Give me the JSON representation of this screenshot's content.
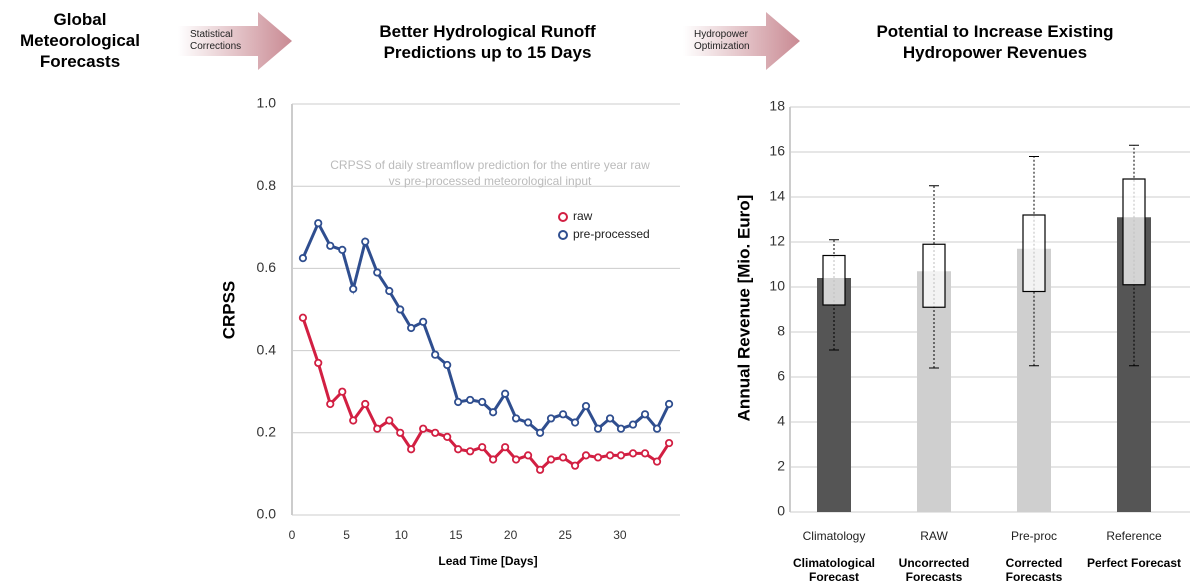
{
  "header": {
    "source": "Global Meteorological Forecasts",
    "arrows": [
      "Statistical Corrections",
      "Hydropower Optimization"
    ]
  },
  "chart_data": [
    {
      "type": "line",
      "title": "Better Hydrological Runoff Predictions up to 15 Days",
      "annotation": "CRPSS of daily streamflow prediction for the entire year raw vs pre-processed meteorological input",
      "xlabel": "Lead Time [Days]",
      "ylabel": "CRPSS",
      "x": [
        1.0,
        2.4,
        3.5,
        4.6,
        5.6,
        6.7,
        7.8,
        8.9,
        9.9,
        10.9,
        12.0,
        13.1,
        14.2,
        15.2,
        16.3,
        17.4,
        18.4,
        19.5,
        20.5,
        21.6,
        22.7,
        23.7,
        24.8,
        25.9,
        26.9,
        28.0,
        29.1,
        30.1,
        31.2,
        32.3,
        33.4,
        34.5
      ],
      "series": [
        {
          "name": "raw",
          "color": "#d21f42",
          "values": [
            0.48,
            0.37,
            0.27,
            0.3,
            0.23,
            0.27,
            0.21,
            0.23,
            0.2,
            0.16,
            0.21,
            0.2,
            0.19,
            0.16,
            0.155,
            0.165,
            0.135,
            0.165,
            0.135,
            0.145,
            0.11,
            0.135,
            0.14,
            0.12,
            0.145,
            0.14,
            0.145,
            0.145,
            0.15,
            0.15,
            0.13,
            0.175
          ]
        },
        {
          "name": "pre-processed",
          "color": "#2f4e8f",
          "values": [
            0.625,
            0.71,
            0.655,
            0.645,
            0.55,
            0.665,
            0.59,
            0.545,
            0.5,
            0.455,
            0.47,
            0.39,
            0.365,
            0.275,
            0.28,
            0.275,
            0.25,
            0.295,
            0.235,
            0.225,
            0.2,
            0.235,
            0.245,
            0.225,
            0.265,
            0.21,
            0.235,
            0.21,
            0.22,
            0.245,
            0.21,
            0.27
          ]
        }
      ],
      "xlim": [
        0,
        35.5
      ],
      "xticks": [
        0,
        5,
        10,
        15,
        20,
        25,
        30
      ],
      "ylim": [
        0,
        1
      ],
      "yticks": [
        {
          "value": 0,
          "label": "0.0"
        },
        0.2,
        0.4,
        0.6,
        0.8,
        {
          "value": 1,
          "label": "1.0"
        }
      ],
      "grid": true,
      "legend": "upper right"
    },
    {
      "type": "box",
      "title": "Potential to Increase Existing Hydropower Revenues",
      "ylabel": "Annual Revenue [Mio. Euro]",
      "categories": [
        "Climatology",
        "RAW",
        "Pre-proc",
        "Reference"
      ],
      "sublabels": [
        "Climatological Forecast",
        "Uncorrected Forecasts",
        "Corrected Forecasts",
        "Perfect Forecast"
      ],
      "values": [
        10.4,
        10.7,
        11.7,
        13.1
      ],
      "colors": [
        "#555555",
        "#cfcfcf",
        "#cfcfcf",
        "#555555"
      ],
      "q1": [
        9.2,
        9.1,
        9.8,
        10.1
      ],
      "q3": [
        11.4,
        11.9,
        13.2,
        14.8
      ],
      "whisker_low": [
        7.2,
        6.4,
        6.5,
        6.5
      ],
      "whisker_high": [
        12.1,
        14.5,
        15.8,
        16.3
      ],
      "ylim": [
        0,
        18
      ],
      "yticks": [
        0,
        2,
        4,
        6,
        8,
        10,
        12,
        14,
        16,
        18
      ],
      "grid": true
    }
  ]
}
